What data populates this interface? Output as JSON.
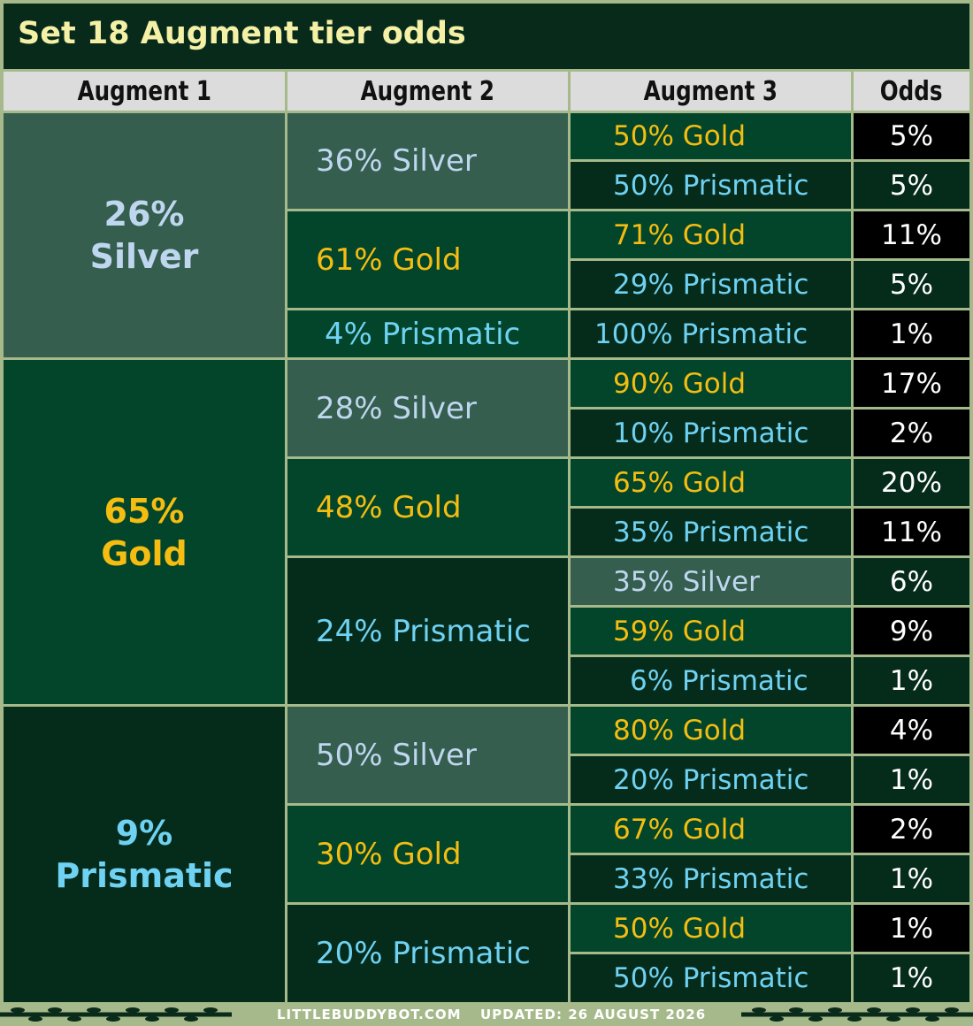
{
  "title": "Set 18 Augment tier odds",
  "headers": [
    "Augment 1",
    "Augment 2",
    "Augment 3",
    "Odds"
  ],
  "colors": {
    "silver": "#bfd6ef",
    "gold": "#f5bd12",
    "prismatic": "#6fd2f2"
  },
  "groups": [
    {
      "a1": {
        "pct": "26%",
        "tier": "Silver"
      },
      "a2": [
        {
          "label": "36% Silver",
          "a3": [
            {
              "label": "50% Gold",
              "odds": "5%"
            },
            {
              "label": "50% Prismatic",
              "odds": "5%"
            }
          ]
        },
        {
          "label": "61% Gold",
          "a3": [
            {
              "label": "71% Gold",
              "odds": "11%"
            },
            {
              "label": "29% Prismatic",
              "odds": "5%"
            }
          ]
        },
        {
          "label": "4%  Prismatic",
          "a3": [
            {
              "label": "100% Prismatic",
              "odds": "1%"
            }
          ]
        }
      ]
    },
    {
      "a1": {
        "pct": "65%",
        "tier": "Gold"
      },
      "a2": [
        {
          "label": "28% Silver",
          "a3": [
            {
              "label": "90% Gold",
              "odds": "17%"
            },
            {
              "label": "10% Prismatic",
              "odds": "2%"
            }
          ]
        },
        {
          "label": "48% Gold",
          "a3": [
            {
              "label": "65% Gold",
              "odds": "20%"
            },
            {
              "label": "35% Prismatic",
              "odds": "11%"
            }
          ]
        },
        {
          "label": "24% Prismatic",
          "a3": [
            {
              "label": "35% Silver",
              "odds": "6%"
            },
            {
              "label": "59% Gold",
              "odds": "9%"
            },
            {
              "label": "6% Prismatic",
              "odds": "1%"
            }
          ]
        }
      ]
    },
    {
      "a1": {
        "pct": "9%",
        "tier": "Prismatic"
      },
      "a2": [
        {
          "label": "50% Silver",
          "a3": [
            {
              "label": "80% Gold",
              "odds": "4%"
            },
            {
              "label": "20% Prismatic",
              "odds": "1%"
            }
          ]
        },
        {
          "label": "30% Gold",
          "a3": [
            {
              "label": "67% Gold",
              "odds": "2%"
            },
            {
              "label": "33% Prismatic",
              "odds": "1%"
            }
          ]
        },
        {
          "label": "20% Prismatic",
          "a3": [
            {
              "label": "50% Gold",
              "odds": "1%"
            },
            {
              "label": "50% Prismatic",
              "odds": "1%"
            }
          ]
        }
      ]
    }
  ],
  "footer": {
    "site": "LITTLEBUDDYBOT.COM",
    "updated": "UPDATED: 26 AUGUST 2026"
  }
}
